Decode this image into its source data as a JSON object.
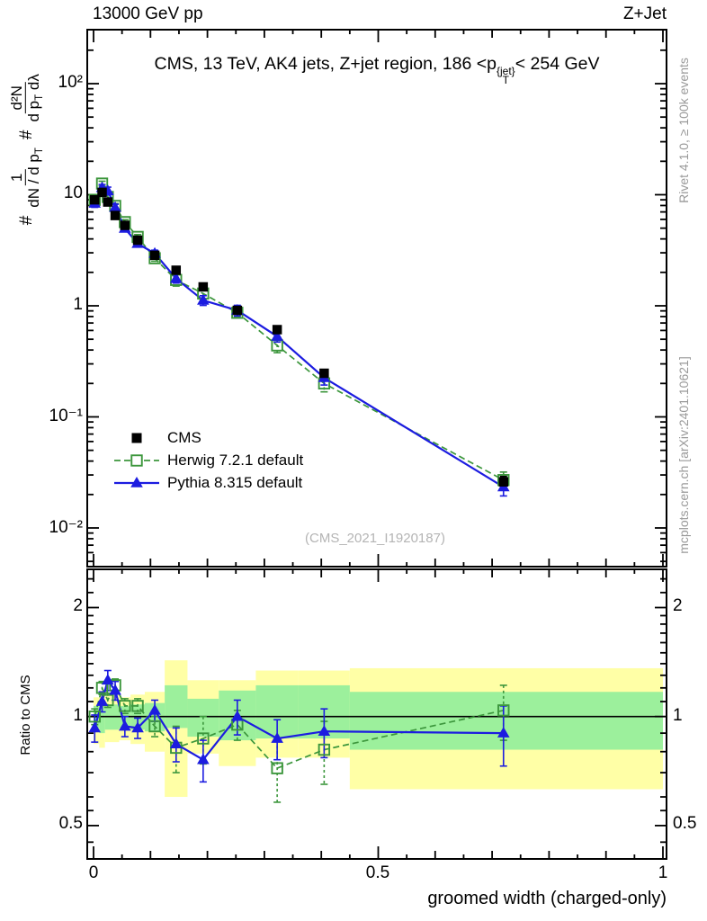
{
  "header": {
    "left": "13000 GeV pp",
    "right": "Z+Jet"
  },
  "panel_title": {
    "pre": "CMS, 13 TeV, AK4 jets, Z+jet region, 186 <p",
    "sup": "{jet}",
    "sub": "T",
    "post": "< 254 GeV"
  },
  "ylabel": {
    "hash1": "#",
    "frac1": {
      "num": "1",
      "den_pre": "dN / d p",
      "den_sub": "T"
    },
    "hash2": "#",
    "frac2": {
      "num": "d²N",
      "den_pre": "d p",
      "den_sub": "T",
      "den_post": " dλ"
    }
  },
  "ratio_ylabel": "Ratio to CMS",
  "xlabel": "groomed width (charged-only)",
  "watermark": "(CMS_2021_I1920187)",
  "side_notes": {
    "top": "Rivet 4.1.0, ≥ 100k events",
    "bottom": "mcplots.cern.ch [arXiv:2401.10621]"
  },
  "axis_ticks": {
    "main_y": [
      "10²",
      "10",
      "1",
      "10⁻¹",
      "10⁻²"
    ],
    "ratio_y": [
      "2",
      "1",
      "0.5"
    ],
    "x": [
      "0",
      "0.5",
      "1"
    ]
  },
  "legend": [
    {
      "label": "CMS",
      "marker": "filled-square",
      "color": "#000000",
      "line": "none"
    },
    {
      "label": "Herwig 7.2.1 default",
      "marker": "open-square",
      "color": "#3c963c",
      "line": "dashed"
    },
    {
      "label": "Pythia 8.315 default",
      "marker": "filled-triangle",
      "color": "#1c1ce0",
      "line": "solid"
    }
  ],
  "colors": {
    "cms": "#000000",
    "herwig": "#3c963c",
    "pythia": "#1c1ce0",
    "band_outer": "#ffffa6",
    "band_inner": "#9cf09c",
    "gray_text": "#999999",
    "watermark": "#b4b4b4"
  },
  "chart_data": [
    {
      "type": "line",
      "title": "CMS, 13 TeV, AK4 jets, Z+jet region, 186 < pT{jet} < 254 GeV",
      "xlabel": "groomed width (charged-only)",
      "ylabel": "# 1/(dN/dpT) # d2N/(dpT dlambda)",
      "yscale": "log10",
      "xlim": [
        -0.011,
        1.006
      ],
      "ylim": [
        0.0045,
        300
      ],
      "x": [
        0.002,
        0.015,
        0.025,
        0.038,
        0.055,
        0.0775,
        0.1075,
        0.145,
        0.1925,
        0.2525,
        0.3225,
        0.405,
        0.72
      ],
      "series": [
        {
          "name": "CMS",
          "values": [
            9.0,
            10.5,
            8.6,
            6.5,
            5.3,
            3.9,
            2.85,
            2.09,
            1.48,
            0.91,
            0.61,
            0.247,
            0.026
          ],
          "rel_err": [
            0.04,
            0.03,
            0.03,
            0.03,
            0.03,
            0.03,
            0.03,
            0.03,
            0.04,
            0.04,
            0.05,
            0.06,
            0.12
          ]
        },
        {
          "name": "Herwig 7.2.1 default",
          "values": [
            9.0,
            12.6,
            9.55,
            7.93,
            5.67,
            4.17,
            2.68,
            1.71,
            1.29,
            0.865,
            0.44,
            0.2,
            0.027
          ],
          "rel_err": [
            0.05,
            0.05,
            0.05,
            0.05,
            0.05,
            0.05,
            0.06,
            0.12,
            0.13,
            0.09,
            0.14,
            0.16,
            0.18
          ]
        },
        {
          "name": "Pythia 8.315 default",
          "values": [
            8.37,
            11.55,
            10.84,
            7.67,
            4.98,
            3.63,
            2.96,
            1.76,
            1.12,
            0.91,
            0.53,
            0.225,
            0.0234
          ],
          "rel_err": [
            0.08,
            0.07,
            0.08,
            0.07,
            0.06,
            0.06,
            0.07,
            0.09,
            0.1,
            0.11,
            0.11,
            0.14,
            0.17
          ]
        }
      ],
      "legend_position": "left-middle"
    },
    {
      "type": "ratio",
      "title": "Ratio to CMS",
      "yscale": "log2",
      "ylim": [
        0.4,
        2.55
      ],
      "reference_line": 1.0,
      "bin_edges": [
        0,
        0.01,
        0.02,
        0.03,
        0.045,
        0.065,
        0.09,
        0.125,
        0.165,
        0.22,
        0.285,
        0.36,
        0.45,
        1.0
      ],
      "x": [
        0.002,
        0.015,
        0.025,
        0.038,
        0.055,
        0.0775,
        0.1075,
        0.145,
        0.1925,
        0.2525,
        0.3225,
        0.405,
        0.72
      ],
      "bands": {
        "yellow_lo": [
          0.84,
          0.82,
          0.85,
          0.85,
          0.86,
          0.84,
          0.8,
          0.6,
          0.79,
          0.73,
          0.77,
          0.77,
          0.63
        ],
        "yellow_hi": [
          1.13,
          1.18,
          1.15,
          1.15,
          1.13,
          1.15,
          1.17,
          1.43,
          1.26,
          1.26,
          1.34,
          1.34,
          1.36
        ],
        "green_lo": [
          0.93,
          0.9,
          0.92,
          0.92,
          0.93,
          0.92,
          0.91,
          0.93,
          0.88,
          0.86,
          0.87,
          0.87,
          0.81
        ],
        "green_hi": [
          1.07,
          1.1,
          1.08,
          1.08,
          1.07,
          1.08,
          1.09,
          1.22,
          1.12,
          1.18,
          1.22,
          1.22,
          1.17
        ]
      },
      "series": [
        {
          "name": "Herwig 7.2.1 default",
          "values": [
            1.0,
            1.2,
            1.11,
            1.22,
            1.07,
            1.07,
            0.94,
            0.82,
            0.87,
            0.95,
            0.72,
            0.81,
            1.04
          ],
          "err": [
            0.05,
            0.05,
            0.05,
            0.05,
            0.05,
            0.05,
            0.06,
            0.12,
            0.13,
            0.09,
            0.14,
            0.16,
            0.18
          ]
        },
        {
          "name": "Pythia 8.315 default",
          "values": [
            0.93,
            1.1,
            1.26,
            1.18,
            0.94,
            0.93,
            1.04,
            0.84,
            0.76,
            1.0,
            0.87,
            0.91,
            0.9
          ],
          "err": [
            0.08,
            0.07,
            0.08,
            0.07,
            0.06,
            0.06,
            0.07,
            0.09,
            0.1,
            0.11,
            0.11,
            0.14,
            0.17
          ]
        }
      ]
    }
  ]
}
